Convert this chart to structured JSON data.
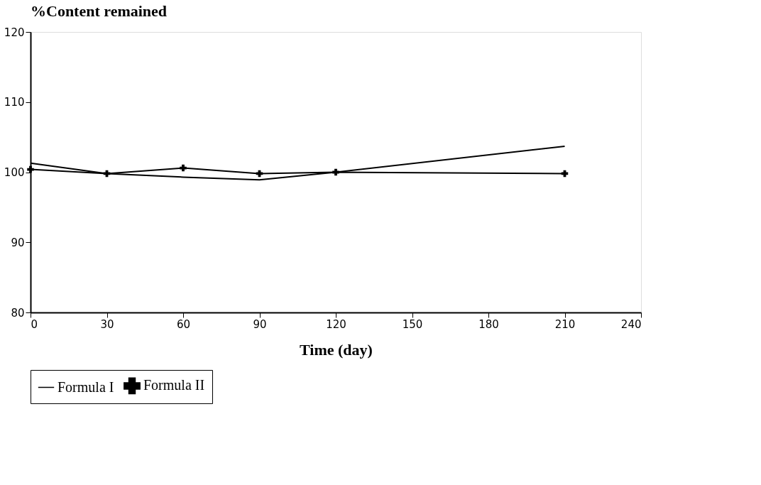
{
  "chart_data": {
    "type": "line",
    "ylabel": "%Content remained",
    "xlabel": "Time (day)",
    "x": [
      0,
      30,
      60,
      90,
      120,
      210
    ],
    "series": [
      {
        "name": "Formula I",
        "color": "#000000",
        "marker": "none",
        "values": [
          101.3,
          99.8,
          99.3,
          98.9,
          100,
          103.7
        ]
      },
      {
        "name": "Formula II",
        "color": "#000000",
        "marker": "cross",
        "values": [
          100.4,
          99.8,
          100.6,
          99.8,
          100,
          99.8
        ]
      }
    ],
    "xlim": [
      0,
      240
    ],
    "xticks": [
      0,
      30,
      60,
      90,
      120,
      150,
      180,
      210,
      240
    ],
    "ylim": [
      80,
      120
    ],
    "yticks": [
      80,
      90,
      100,
      110,
      120
    ],
    "grid": false,
    "legend": "bottom",
    "line_style": "solid"
  }
}
